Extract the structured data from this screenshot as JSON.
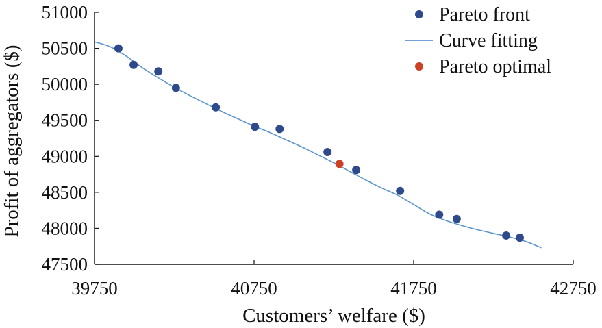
{
  "chart_data": {
    "type": "scatter",
    "xlabel": "Customers’ welfare ($)",
    "ylabel": "Profit of aggregators ($)",
    "xlim": [
      39750,
      42750
    ],
    "ylim": [
      47500,
      51000
    ],
    "xticks": [
      "39750",
      "40750",
      "41750",
      "42750"
    ],
    "yticks": [
      "47500",
      "48000",
      "48500",
      "49000",
      "49500",
      "50000",
      "50500",
      "51000"
    ],
    "grid": false,
    "legend_position": "top-right",
    "series": [
      {
        "name": "Pareto front",
        "type": "scatter",
        "color": "#2f4a8a",
        "points": [
          [
            39900,
            50500
          ],
          [
            39995,
            50270
          ],
          [
            40150,
            50180
          ],
          [
            40260,
            49950
          ],
          [
            40510,
            49680
          ],
          [
            40755,
            49410
          ],
          [
            40910,
            49380
          ],
          [
            41210,
            49060
          ],
          [
            41390,
            48810
          ],
          [
            41665,
            48520
          ],
          [
            41910,
            48190
          ],
          [
            42020,
            48130
          ],
          [
            42330,
            47900
          ],
          [
            42415,
            47870
          ]
        ]
      },
      {
        "name": "Curve fitting",
        "type": "line",
        "color": "#5b95cf",
        "points": [
          [
            39750,
            50590
          ],
          [
            39850,
            50520
          ],
          [
            39950,
            50390
          ],
          [
            40050,
            50230
          ],
          [
            40150,
            50090
          ],
          [
            40250,
            49960
          ],
          [
            40350,
            49840
          ],
          [
            40450,
            49730
          ],
          [
            40550,
            49620
          ],
          [
            40650,
            49520
          ],
          [
            40750,
            49420
          ],
          [
            40850,
            49330
          ],
          [
            40950,
            49230
          ],
          [
            41050,
            49130
          ],
          [
            41150,
            49020
          ],
          [
            41250,
            48910
          ],
          [
            41350,
            48790
          ],
          [
            41450,
            48670
          ],
          [
            41550,
            48560
          ],
          [
            41650,
            48460
          ],
          [
            41750,
            48330
          ],
          [
            41850,
            48200
          ],
          [
            41950,
            48110
          ],
          [
            42050,
            48040
          ],
          [
            42150,
            47980
          ],
          [
            42250,
            47930
          ],
          [
            42350,
            47880
          ],
          [
            42450,
            47820
          ],
          [
            42550,
            47730
          ]
        ]
      },
      {
        "name": "Pareto optimal",
        "type": "scatter",
        "color": "#cc4125",
        "points": [
          [
            41285,
            48895
          ]
        ]
      }
    ]
  }
}
